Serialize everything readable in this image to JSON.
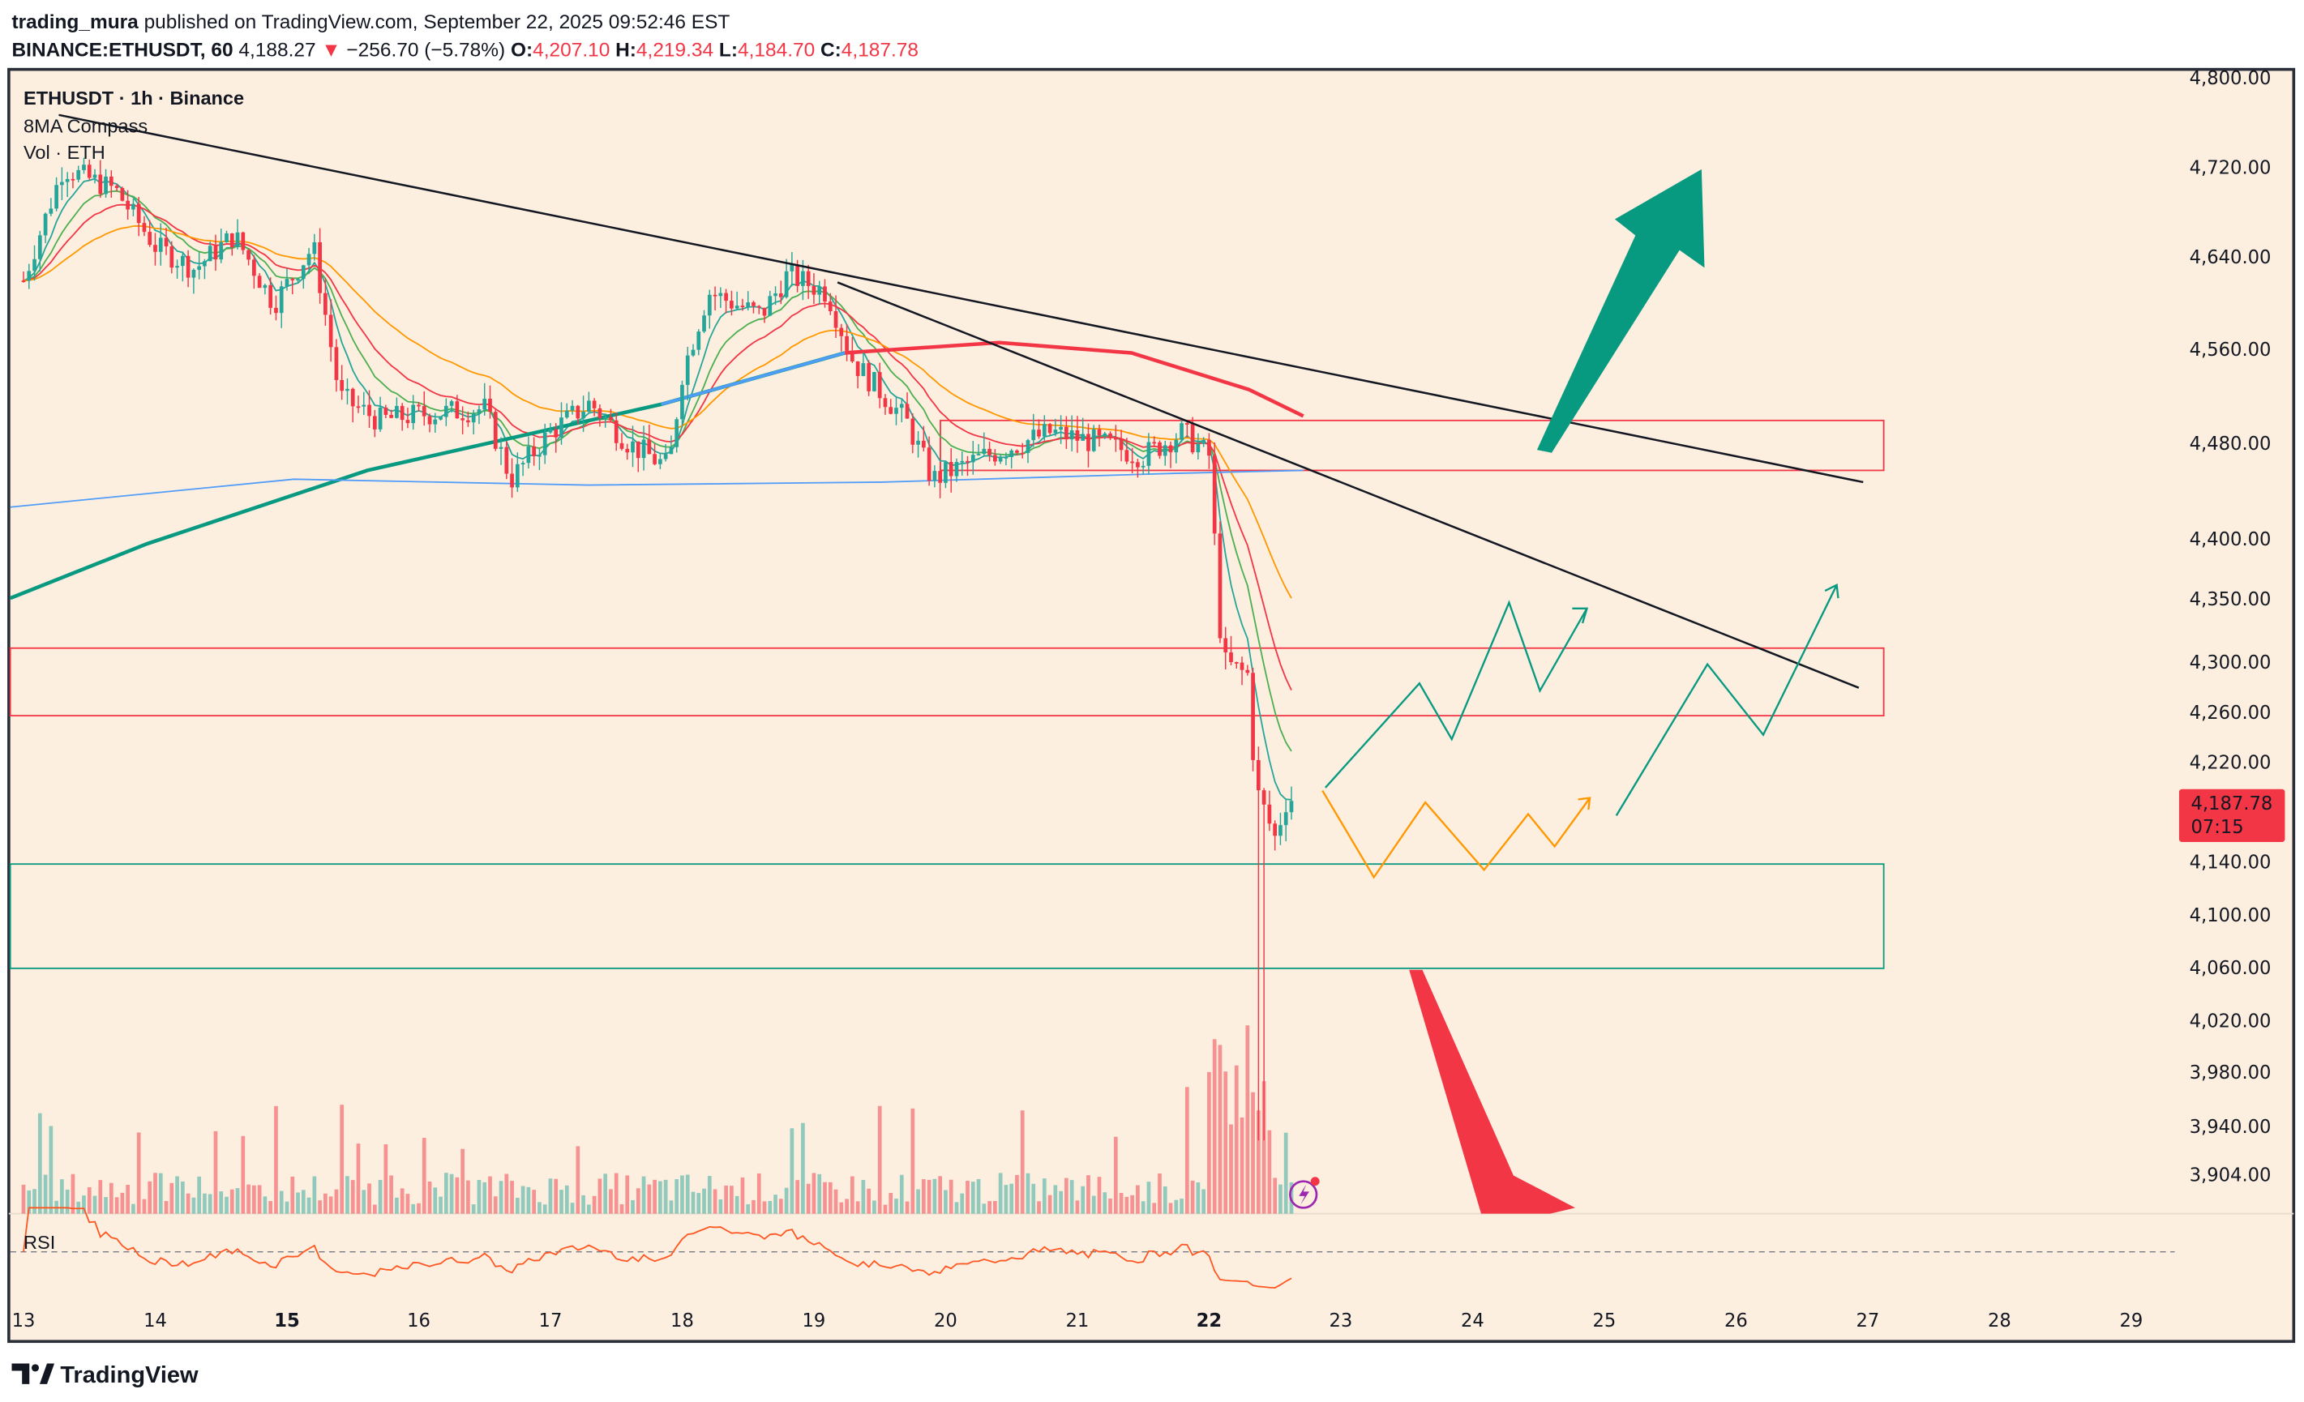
{
  "header": {
    "author": "trading_mura",
    "published": "published on TradingView.com, September 22, 2025 09:52:46 EST",
    "symbol": "BINANCE:ETHUSDT, 60",
    "last": "4,188.27",
    "change": "−256.70 (−5.78%)",
    "o_label": "O:",
    "o": "4,207.10",
    "h_label": "H:",
    "h": "4,219.34",
    "l_label": "L:",
    "l": "4,184.70",
    "c_label": "C:",
    "c": "4,187.78"
  },
  "legend": {
    "title": "ETHUSDT · 1h · Binance",
    "indicator": "8MA Compass",
    "volume": "Vol · ETH",
    "rsi": "RSI"
  },
  "price_badge": {
    "price": "4,187.78",
    "countdown": "07:15"
  },
  "footer": {
    "logo": "TradingView"
  },
  "colors": {
    "up": "#26a69a",
    "down": "#f23645",
    "bg": "#fdefe0",
    "arrow_up": "#089981",
    "arrow_down": "#f23645",
    "orange": "#ff9800"
  },
  "chart_data": {
    "type": "candlestick",
    "title": "ETHUSDT · 1h · Binance",
    "y_ticks": [
      "4,800.00",
      "4,720.00",
      "4,640.00",
      "4,560.00",
      "4,480.00",
      "4,400.00",
      "4,350.00",
      "4,300.00",
      "4,260.00",
      "4,220.00",
      "4,140.00",
      "4,100.00",
      "4,060.00",
      "4,020.00",
      "3,980.00",
      "3,940.00",
      "3,904.00"
    ],
    "x_ticks": [
      "13",
      "14",
      "15",
      "16",
      "17",
      "18",
      "19",
      "20",
      "21",
      "22",
      "23",
      "24",
      "25",
      "26",
      "27",
      "28",
      "29"
    ],
    "price_path": [
      [
        13.0,
        4620
      ],
      [
        13.3,
        4720
      ],
      [
        13.7,
        4700
      ],
      [
        14.0,
        4650
      ],
      [
        14.3,
        4630
      ],
      [
        14.6,
        4660
      ],
      [
        14.9,
        4600
      ],
      [
        15.2,
        4650
      ],
      [
        15.4,
        4520
      ],
      [
        15.7,
        4500
      ],
      [
        16.0,
        4505
      ],
      [
        16.5,
        4510
      ],
      [
        16.7,
        4450
      ],
      [
        17.0,
        4490
      ],
      [
        17.3,
        4515
      ],
      [
        17.6,
        4480
      ],
      [
        17.9,
        4460
      ],
      [
        18.0,
        4540
      ],
      [
        18.2,
        4610
      ],
      [
        18.6,
        4590
      ],
      [
        18.8,
        4625
      ],
      [
        19.1,
        4610
      ],
      [
        19.3,
        4550
      ],
      [
        19.7,
        4500
      ],
      [
        19.9,
        4450
      ],
      [
        20.3,
        4470
      ],
      [
        20.8,
        4490
      ],
      [
        21.2,
        4480
      ],
      [
        21.5,
        4470
      ],
      [
        21.8,
        4490
      ],
      [
        22.0,
        4470
      ],
      [
        22.1,
        4300
      ],
      [
        22.3,
        4290
      ],
      [
        22.35,
        4200
      ],
      [
        22.5,
        4160
      ],
      [
        22.6,
        4195
      ],
      [
        22.65,
        4188
      ]
    ],
    "zones": [
      [
        4460,
        4500
      ],
      [
        4260,
        4310
      ],
      [
        4060,
        4140
      ]
    ],
    "last_price": 4187.78
  }
}
